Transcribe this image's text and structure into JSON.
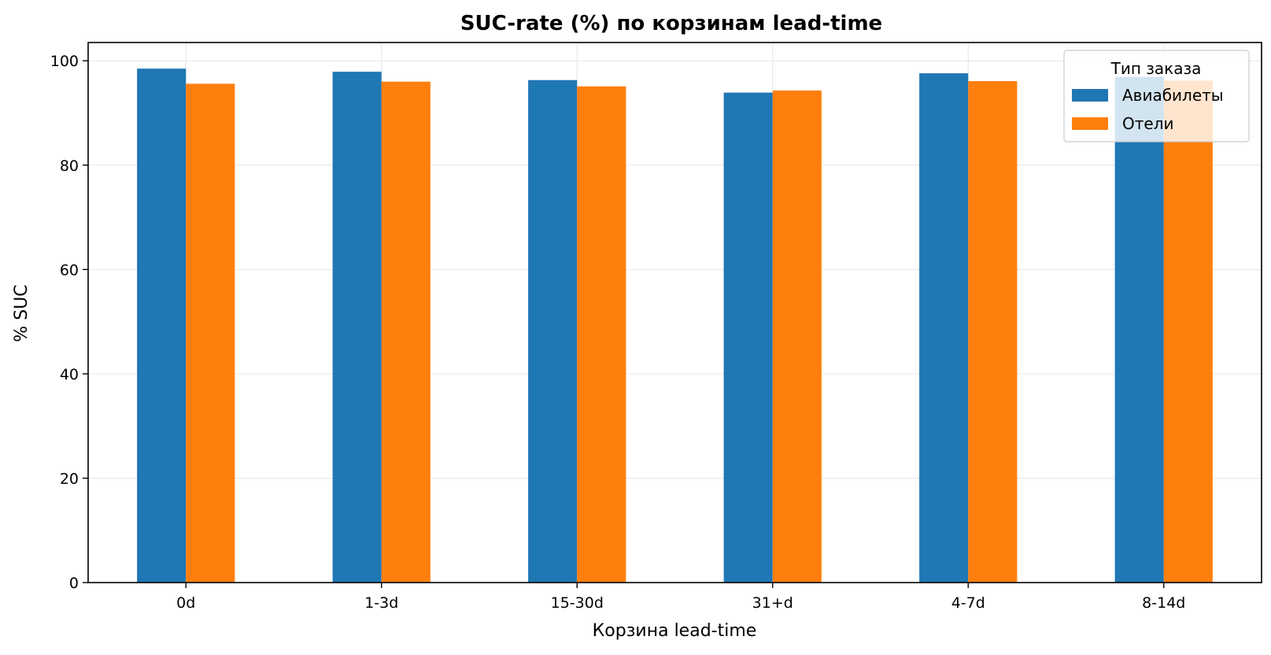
{
  "chart_data": {
    "type": "bar",
    "title": "SUC-rate (%) по корзинам lead-time",
    "xlabel": "Корзина lead-time",
    "ylabel": "% SUC",
    "categories": [
      "0d",
      "1-3d",
      "15-30d",
      "31+d",
      "4-7d",
      "8-14d"
    ],
    "series": [
      {
        "name": "Авиабилеты",
        "color": "#1f77b4",
        "values": [
          98.5,
          97.9,
          96.3,
          93.9,
          97.6,
          96.9
        ]
      },
      {
        "name": "Отели",
        "color": "#ff7f0e",
        "values": [
          95.6,
          96.0,
          95.1,
          94.3,
          96.1,
          96.2
        ]
      }
    ],
    "ylim": [
      0,
      103.5
    ],
    "yticks": [
      0,
      20,
      40,
      60,
      80,
      100
    ],
    "grid": true,
    "legend": {
      "title": "Тип заказа",
      "position": "top-right"
    }
  }
}
